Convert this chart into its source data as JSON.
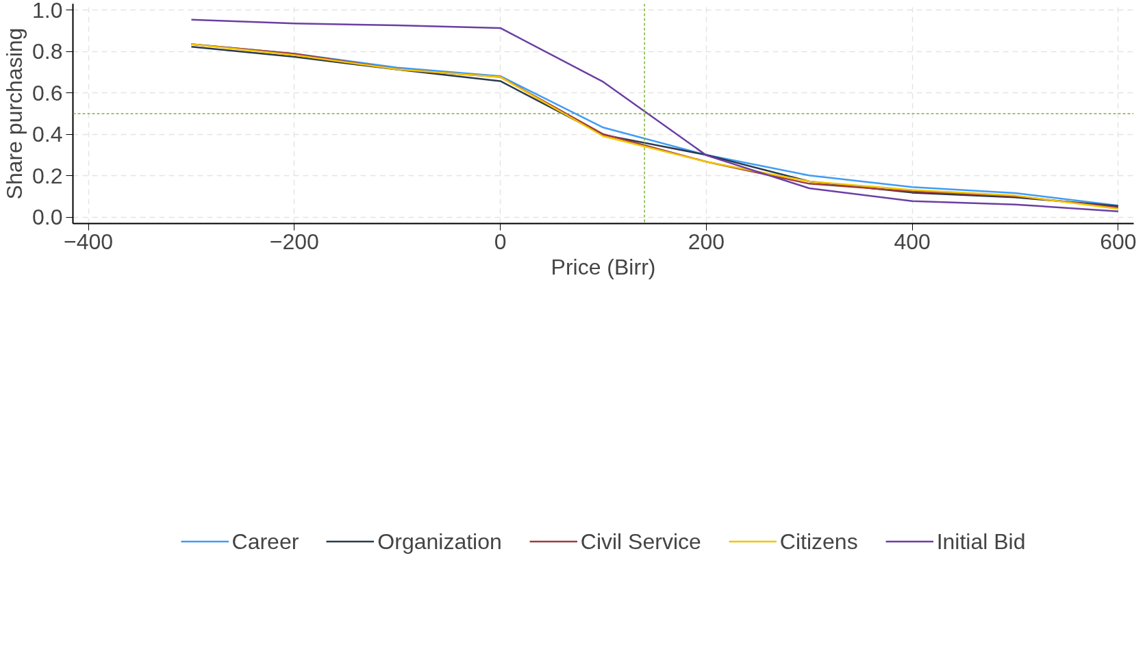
{
  "chart_data": {
    "type": "line",
    "xlabel": "Price (Birr)",
    "ylabel": "Share purchasing",
    "x": [
      -300,
      -200,
      -100,
      0,
      100,
      200,
      300,
      400,
      500,
      600
    ],
    "series": [
      {
        "name": "Career",
        "color": "#3f9cf4",
        "values": [
          0.835,
          0.789,
          0.722,
          0.681,
          0.433,
          0.301,
          0.202,
          0.146,
          0.117,
          0.057
        ]
      },
      {
        "name": "Organization",
        "color": "#2b3a4e",
        "values": [
          0.823,
          0.774,
          0.713,
          0.657,
          0.398,
          0.301,
          0.173,
          0.119,
          0.096,
          0.054
        ]
      },
      {
        "name": "Civil Service",
        "color": "#a33a3e",
        "values": [
          0.835,
          0.789,
          0.714,
          0.677,
          0.401,
          0.268,
          0.162,
          0.125,
          0.102,
          0.047
        ]
      },
      {
        "name": "Citizens",
        "color": "#f2c500",
        "values": [
          0.835,
          0.782,
          0.714,
          0.677,
          0.391,
          0.268,
          0.173,
          0.132,
          0.105,
          0.041
        ]
      },
      {
        "name": "Initial Bid",
        "color": "#6b3fa3",
        "values": [
          0.953,
          0.935,
          0.926,
          0.913,
          0.653,
          0.299,
          0.14,
          0.078,
          0.062,
          0.029
        ]
      }
    ],
    "xlim": [
      -415,
      615
    ],
    "xticks": [
      -400,
      -200,
      0,
      200,
      400,
      600
    ],
    "ylim": [
      -0.03,
      1.03
    ],
    "yticks": [
      {
        "value": 0,
        "label": "0.0"
      },
      0.2,
      0.4,
      0.6,
      0.8,
      {
        "value": 1,
        "label": "1.0"
      }
    ],
    "ref_lines": [
      {
        "axis": "y",
        "value": 0.5,
        "color": "#7fb13a",
        "line_style": "dashed"
      },
      {
        "axis": "x",
        "value": 140,
        "color": "#7fb13a",
        "line_style": "dashed"
      }
    ],
    "grid": true,
    "legend": "bottom",
    "line_style": "solid",
    "marker": "none"
  }
}
